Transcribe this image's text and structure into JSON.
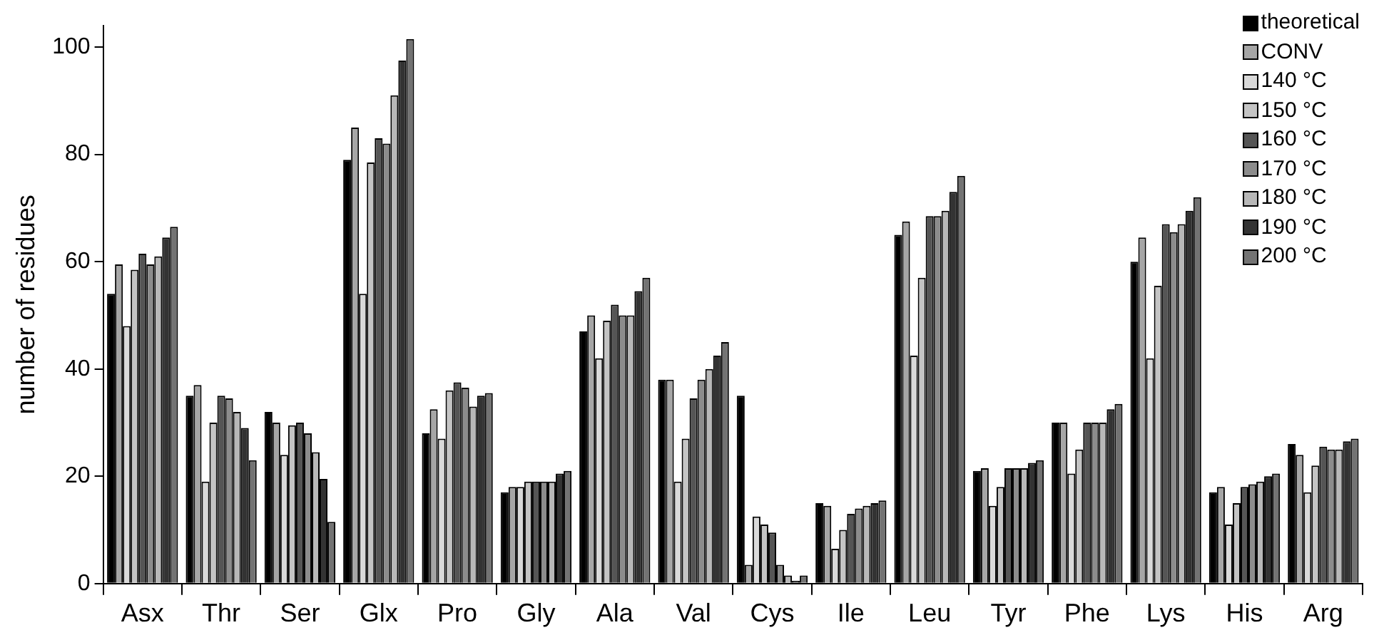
{
  "chart_data": {
    "type": "bar",
    "ylabel": "number of residues",
    "categories": [
      "Asx",
      "Thr",
      "Ser",
      "Glx",
      "Pro",
      "Gly",
      "Ala",
      "Val",
      "Cys",
      "Ile",
      "Leu",
      "Tyr",
      "Phe",
      "Lys",
      "His",
      "Arg"
    ],
    "ylim": [
      0,
      104
    ],
    "yticks": [
      0,
      20,
      40,
      60,
      80,
      100
    ],
    "grid": false,
    "legend": "top right",
    "series": [
      {
        "name": "theoretical",
        "color": "#000000",
        "values": [
          54,
          35,
          32,
          79,
          28,
          17,
          47,
          38,
          35,
          15,
          65,
          21,
          30,
          60,
          17,
          26
        ]
      },
      {
        "name": "CONV",
        "color": "#a6a6a6",
        "values": [
          59.5,
          37,
          30,
          85,
          32.5,
          18,
          50,
          38,
          3.5,
          14.5,
          67.5,
          21.5,
          30,
          64.5,
          18,
          24
        ]
      },
      {
        "name": "140 °C",
        "color": "#d9d9d9",
        "values": [
          48,
          19,
          24,
          54,
          27,
          18,
          42,
          19,
          12.5,
          6.5,
          42.5,
          14.5,
          20.5,
          42,
          11,
          17
        ]
      },
      {
        "name": "150 °C",
        "color": "#c4c4c4",
        "values": [
          58.5,
          30,
          29.5,
          78.5,
          36,
          19,
          49,
          27,
          11,
          10,
          57,
          18,
          25,
          55.5,
          15,
          22
        ]
      },
      {
        "name": "160 °C",
        "color": "#555555",
        "values": [
          61.5,
          35,
          30,
          83,
          37.5,
          19,
          52,
          34.5,
          9.5,
          13,
          68.5,
          21.5,
          30,
          67,
          18,
          25.5
        ]
      },
      {
        "name": "170 °C",
        "color": "#8c8c8c",
        "values": [
          59.5,
          34.5,
          28,
          82,
          36.5,
          19,
          50,
          38,
          3.5,
          14,
          68.5,
          21.5,
          30,
          65.5,
          18.5,
          25
        ]
      },
      {
        "name": "180 °C",
        "color": "#b8b8b8",
        "values": [
          61,
          32,
          24.5,
          91,
          33,
          19,
          50,
          40,
          1.5,
          14.5,
          69.5,
          21.5,
          30,
          67,
          19,
          25
        ]
      },
      {
        "name": "190 °C",
        "color": "#333333",
        "values": [
          64.5,
          29,
          19.5,
          97.5,
          35,
          20.5,
          54.5,
          42.5,
          0.5,
          15,
          73,
          22.5,
          32.5,
          69.5,
          20,
          26.5
        ]
      },
      {
        "name": "200 °C",
        "color": "#737373",
        "values": [
          66.5,
          23,
          11.5,
          101.5,
          35.5,
          21,
          57,
          45,
          1.5,
          15.5,
          76,
          23,
          33.5,
          72,
          20.5,
          27
        ]
      }
    ]
  }
}
